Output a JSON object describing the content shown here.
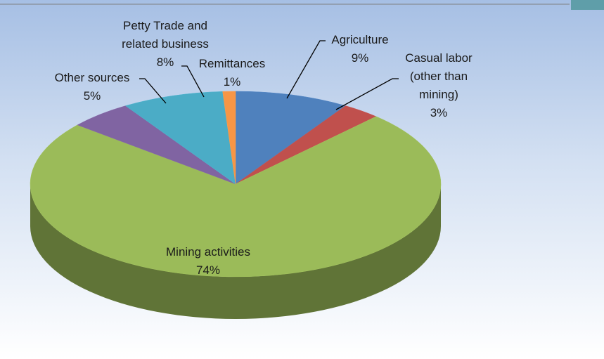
{
  "chart_data": {
    "type": "pie",
    "categories": [
      "Agriculture",
      "Casual labor (other than mining)",
      "Mining activities",
      "Other sources",
      "Petty Trade and related business",
      "Remittances"
    ],
    "values": [
      9,
      3,
      74,
      5,
      8,
      1
    ],
    "value_labels": [
      "9%",
      "3%",
      "74%",
      "5%",
      "8%",
      "1%"
    ],
    "colors": [
      "#4f81bd",
      "#c0504d",
      "#9bbb59",
      "#8064a2",
      "#4bacc6",
      "#f79646"
    ]
  }
}
